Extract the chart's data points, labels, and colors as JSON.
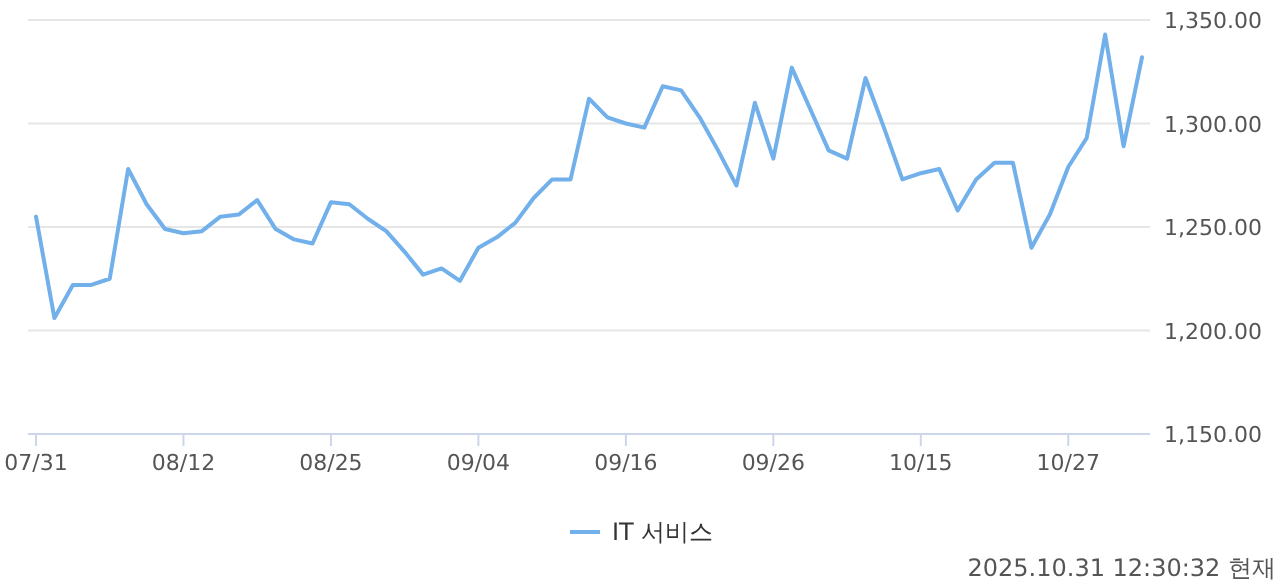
{
  "chart_data": {
    "type": "line",
    "categories": [
      "07/31",
      null,
      null,
      null,
      null,
      null,
      null,
      null,
      "08/12",
      null,
      null,
      null,
      null,
      null,
      null,
      null,
      "08/25",
      null,
      null,
      null,
      null,
      null,
      null,
      null,
      "09/04",
      null,
      null,
      null,
      null,
      null,
      null,
      null,
      "09/16",
      null,
      null,
      null,
      null,
      null,
      null,
      null,
      "09/26",
      null,
      null,
      null,
      null,
      null,
      null,
      null,
      "10/15",
      null,
      null,
      null,
      null,
      null,
      null,
      null,
      "10/27",
      null,
      null,
      null,
      null
    ],
    "series": [
      {
        "name": "IT 서비스",
        "color": "#71b0ea",
        "values": [
          1255,
          1206,
          1222,
          1222,
          1225,
          1278,
          1261,
          1249,
          1247,
          1248,
          1255,
          1256,
          1263,
          1249,
          1244,
          1242,
          1262,
          1261,
          1254,
          1248,
          1238,
          1227,
          1230,
          1224,
          1240,
          1245,
          1252,
          1264,
          1273,
          1273,
          1312,
          1303,
          1300,
          1298,
          1318,
          1316,
          1303,
          1287,
          1270,
          1310,
          1283,
          1327,
          1307,
          1287,
          1283,
          1322,
          1298,
          1273,
          1276,
          1278,
          1258,
          1273,
          1281,
          1281,
          1240,
          1256,
          1279,
          1293,
          1343,
          1289,
          1332
        ]
      }
    ],
    "ylim": [
      1150,
      1350
    ],
    "yticks": [
      {
        "value": 1150,
        "label": "1,150.00"
      },
      {
        "value": 1200,
        "label": "1,200.00"
      },
      {
        "value": 1250,
        "label": "1,250.00"
      },
      {
        "value": 1300,
        "label": "1,300.00"
      },
      {
        "value": 1350,
        "label": "1,350.00"
      }
    ],
    "grid": "y",
    "legend": "bottom",
    "marker": "none",
    "line_style": "solid",
    "annotations": [
      "2025.10.31 12:30:32 현재"
    ]
  }
}
